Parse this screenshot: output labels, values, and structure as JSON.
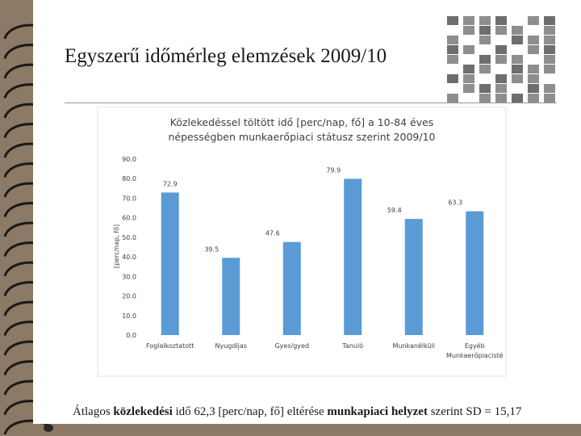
{
  "slide": {
    "title": "Egyszerű időmérleg elemzések 2009/10",
    "footer_pre": "Átlagos ",
    "footer_b1": "közlekedési",
    "footer_mid1": " idő 62,3 [perc/nap, fő] eltérése ",
    "footer_b2": "munkapiaci helyzet",
    "footer_post": " szerint SD = 15,17"
  },
  "chart_data": {
    "type": "bar",
    "title": "Közlekedéssel töltött idő [perc/nap, fő] a 10-84 éves népességben munkaerőpiaci státusz szerint 2009/10",
    "ylabel": "[perc/nap, fő]",
    "xlabel": "",
    "categories": [
      "Foglalkoztatott",
      "Nyugdíjas",
      "Gyes/gyed",
      "Tanuló",
      "Munkanélküli",
      "Egyéb Munkaerőpiacisté"
    ],
    "values": [
      72.9,
      39.5,
      47.6,
      79.9,
      59.4,
      63.3
    ],
    "value_labels": [
      "72.9",
      "39.5",
      "47.6",
      "79.9",
      "59.4",
      "63.3"
    ],
    "ylim": [
      0,
      90
    ],
    "yticks": [
      "0.0",
      "10.0",
      "20.0",
      "30.0",
      "40.0",
      "50.0",
      "60.0",
      "70.0",
      "80.0",
      "90.0"
    ],
    "grid": false,
    "bar_color": "#5b9bd5"
  }
}
